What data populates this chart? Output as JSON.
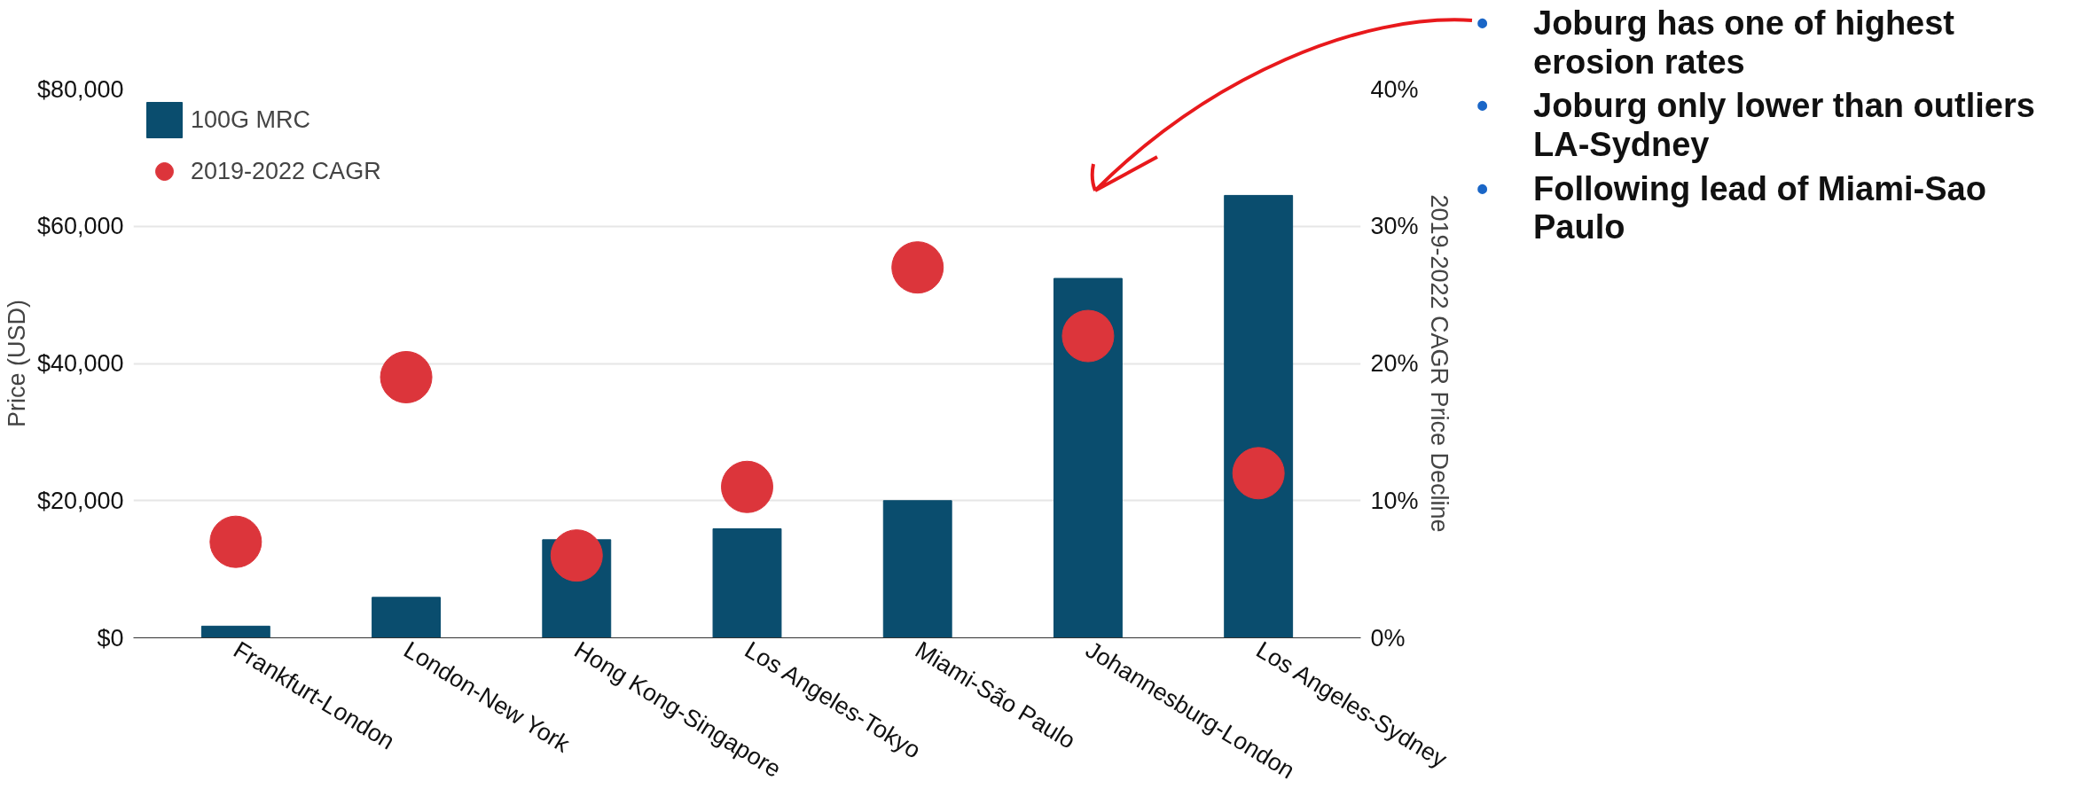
{
  "chart_data": {
    "type": "bar",
    "categories": [
      "Frankfurt-London",
      "London-New York",
      "Hong Kong-Singapore",
      "Los Angeles-Tokyo",
      "Miami-São Paulo",
      "Johannesburg-London",
      "Los Angeles-Sydney"
    ],
    "series": [
      {
        "name": "100G MRC",
        "color": "#0a4d6e",
        "values": [
          1700,
          5900,
          14300,
          15900,
          20000,
          52400,
          64500
        ]
      },
      {
        "name": "2019-2022 CAGR",
        "type": "scatter",
        "axis": "y2",
        "color": "#dc353b",
        "values": [
          7,
          19,
          6,
          11,
          27,
          22,
          12
        ]
      }
    ],
    "ylabel": "Price (USD)",
    "y2label": "2019-2022 CAGR Price Decline",
    "ylim": [
      0,
      80000
    ],
    "yticks": [
      {
        "value": 0,
        "label": "$0"
      },
      {
        "value": 20000,
        "label": "$20,000"
      },
      {
        "value": 40000,
        "label": "$40,000"
      },
      {
        "value": 60000,
        "label": "$60,000"
      },
      {
        "value": 80000,
        "label": "$80,000"
      }
    ],
    "y2lim": [
      0,
      40
    ],
    "y2ticks": [
      {
        "value": 0,
        "label": "0%"
      },
      {
        "value": 10,
        "label": "10%"
      },
      {
        "value": 20,
        "label": "20%"
      },
      {
        "value": 30,
        "label": "30%"
      },
      {
        "value": 40,
        "label": "40%"
      }
    ],
    "grid": "y",
    "legend": "top left",
    "marker": "circle",
    "annotations": [
      "• Joburg has one of highest erosion rates",
      "• Joburg only lower than outliers LA-Sydney",
      "• Following lead of Miami-Sao Paulo"
    ]
  }
}
